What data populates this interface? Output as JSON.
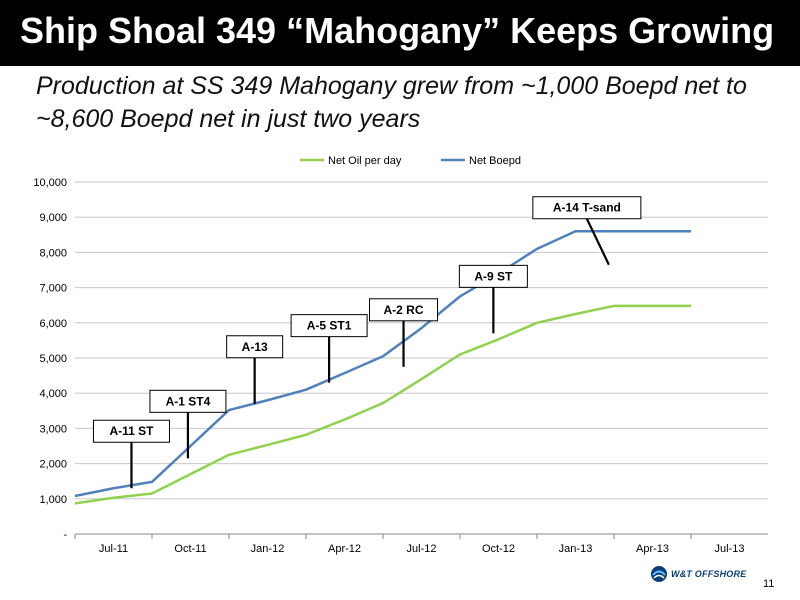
{
  "slide": {
    "title": "Ship Shoal 349 “Mahogany” Keeps Growing",
    "subtitle": "Production at SS 349 Mahogany grew from ~1,000 Boepd net to ~8,600 Boepd net in just two years",
    "page_number": "11",
    "logo_text": "W&T OFFSHORE"
  },
  "colors": {
    "title_bg": "#000000",
    "net_oil": "#92d050",
    "net_boepd": "#4f81bd",
    "logo": "#0b3c7a"
  },
  "chart_data": {
    "type": "line",
    "categories": [
      "Jul-11",
      "Oct-11",
      "Jan-12",
      "Apr-12",
      "Jul-12",
      "Oct-12",
      "Jan-13",
      "Apr-13",
      "Jul-13"
    ],
    "ylim": [
      0,
      10000
    ],
    "yticks": [
      0,
      1000,
      2000,
      3000,
      4000,
      5000,
      6000,
      7000,
      8000,
      9000,
      10000
    ],
    "ytick_labels": [
      "-",
      "1,000",
      "2,000",
      "3,000",
      "4,000",
      "5,000",
      "6,000",
      "7,000",
      "8,000",
      "9,000",
      "10,000"
    ],
    "legend_position": "top-center",
    "grid": true,
    "series": [
      {
        "name": "Net Oil per day",
        "color": "#92d050",
        "x": [
          0,
          1.5,
          3,
          4.5,
          6,
          7.5,
          9,
          10.5,
          12,
          13.5,
          15,
          16.5,
          18,
          19.5,
          21,
          22.5,
          24
        ],
        "values": [
          870,
          1030,
          1150,
          1700,
          2250,
          2530,
          2820,
          3250,
          3720,
          4400,
          5100,
          5530,
          6000,
          6250,
          6480,
          6480,
          6480
        ]
      },
      {
        "name": "Net Boepd",
        "color": "#4f81bd",
        "x": [
          0,
          1.5,
          3,
          4.5,
          6,
          7.5,
          9,
          10.5,
          12,
          13.5,
          15,
          16.5,
          18,
          19.5,
          21,
          22.5,
          24
        ],
        "values": [
          1080,
          1300,
          1480,
          2500,
          3520,
          3800,
          4100,
          4570,
          5050,
          5850,
          6750,
          7400,
          8100,
          8600,
          8600,
          8600,
          8600
        ]
      }
    ],
    "annotations": [
      {
        "label": "A-11 ST",
        "x": 2.2,
        "y": 1300
      },
      {
        "label": "A-1 ST4",
        "x": 4.4,
        "y": 2150
      },
      {
        "label": "A-13",
        "x": 7.0,
        "y": 3700
      },
      {
        "label": "A-5 ST1",
        "x": 9.9,
        "y": 4300
      },
      {
        "label": "A-2 RC",
        "x": 12.8,
        "y": 4750
      },
      {
        "label": "A-9 ST",
        "x": 16.3,
        "y": 5700
      },
      {
        "label": "A-14 T-sand",
        "x": 20.8,
        "y": 7650
      }
    ]
  }
}
